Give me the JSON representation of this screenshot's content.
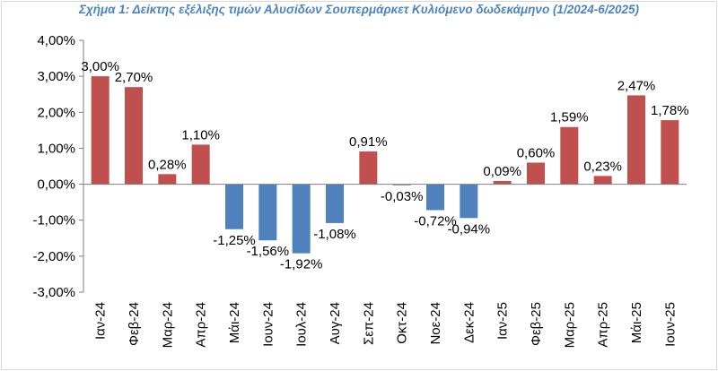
{
  "chart_data": {
    "type": "bar",
    "title": "Σχήμα 1: Δείκτης εξέλιξης τιμών Αλυσίδων Σουπερμάρκετ Κυλιόμενο δωδεκάμηνο (1/2024-6/2025)",
    "xlabel": "",
    "ylabel": "",
    "ylim": [
      -3,
      4
    ],
    "yticks": [
      4,
      3,
      2,
      1,
      0,
      -1,
      -2,
      -3
    ],
    "ytick_labels": [
      "4,00%",
      "3,00%",
      "2,00%",
      "1,00%",
      "0,00%",
      "-1,00%",
      "-2,00%",
      "-3,00%"
    ],
    "categories": [
      "Ιαν-24",
      "Φεβ-24",
      "Μαρ-24",
      "Απρ-24",
      "Μάι-24",
      "Ιουν-24",
      "Ιουλ-24",
      "Αυγ-24",
      "Σεπ-24",
      "Οκτ-24",
      "Νοε-24",
      "Δεκ-24",
      "Ιαν-25",
      "Φεβ-25",
      "Μαρ-25",
      "Απρ-25",
      "Μάι-25",
      "Ιουν-25"
    ],
    "values": [
      3.0,
      2.7,
      0.28,
      1.1,
      -1.25,
      -1.56,
      -1.92,
      -1.08,
      0.91,
      -0.03,
      -0.72,
      -0.94,
      0.09,
      0.6,
      1.59,
      0.23,
      2.47,
      1.78
    ],
    "value_labels": [
      "3,00%",
      "2,70%",
      "0,28%",
      "1,10%",
      "-1,25%",
      "-1,56%",
      "-1,92%",
      "-1,08%",
      "0,91%",
      "-0,03%",
      "-0,72%",
      "-0,94%",
      "0,09%",
      "0,60%",
      "1,59%",
      "0,23%",
      "2,47%",
      "1,78%"
    ],
    "colors": {
      "positive": "#c0504d",
      "negative": "#4f81bd",
      "title": "#4a84c4"
    }
  }
}
